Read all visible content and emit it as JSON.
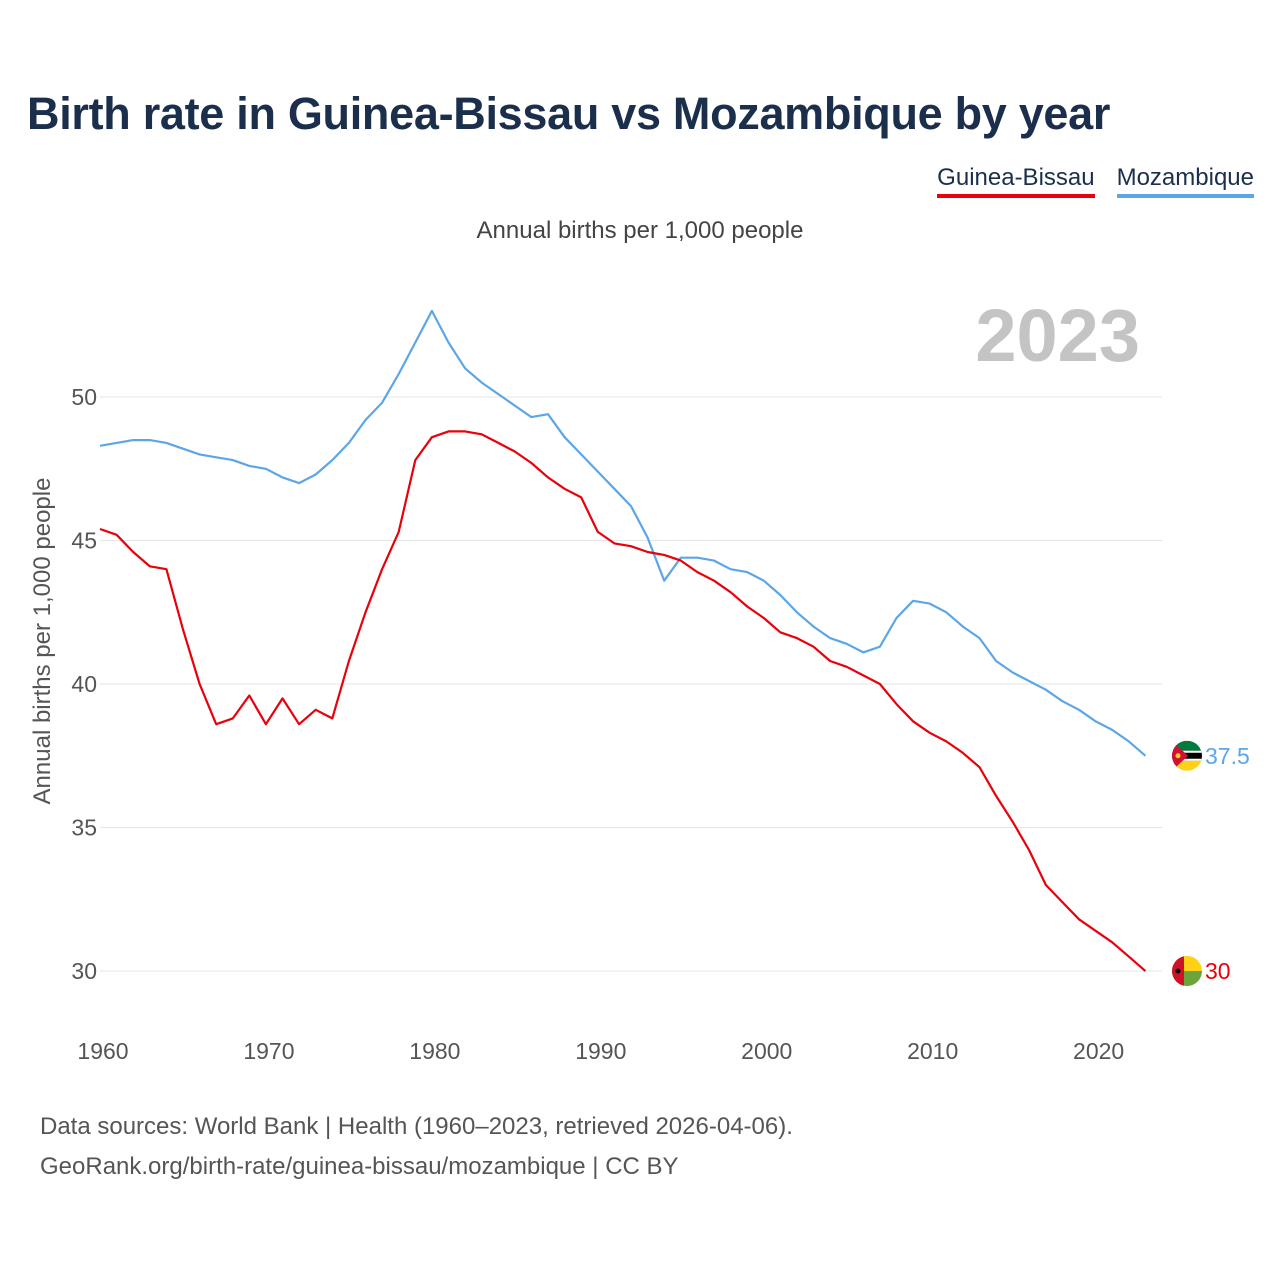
{
  "title": "Birth rate in Guinea-Bissau vs Mozambique by year",
  "legend": [
    {
      "name": "Guinea-Bissau",
      "color": "#e8000b"
    },
    {
      "name": "Mozambique",
      "color": "#5ca6e6"
    }
  ],
  "subtitle": "Annual births per 1,000 people",
  "source": {
    "line1": "Data sources: World Bank | Health (1960–2023, retrieved 2026-04-06).",
    "line2": "GeoRank.org/birth-rate/guinea-bissau/mozambique | CC BY"
  },
  "chart_data": {
    "type": "line",
    "title": "Birth rate in Guinea-Bissau vs Mozambique by year",
    "ylabel": "Annual births per 1,000 people",
    "xlabel": "",
    "year_label": "2023",
    "x_start": 1960,
    "xlim": [
      1960,
      2024
    ],
    "ylim": [
      28.5,
      53.5
    ],
    "yticks": [
      30,
      35,
      40,
      45,
      50
    ],
    "xticks": [
      1960,
      1970,
      1980,
      1990,
      2000,
      2010,
      2020
    ],
    "grid": true,
    "series": [
      {
        "name": "Guinea-Bissau",
        "color": "#e8000b",
        "end_label": "30",
        "flag": "guinea-bissau-flag",
        "values": [
          45.4,
          45.2,
          44.6,
          44.1,
          44.0,
          41.9,
          40.0,
          38.6,
          38.8,
          39.6,
          38.6,
          39.5,
          38.6,
          39.1,
          38.8,
          40.8,
          42.5,
          44.0,
          45.3,
          47.8,
          48.6,
          48.8,
          48.8,
          48.7,
          48.4,
          48.1,
          47.7,
          47.2,
          46.8,
          46.5,
          45.3,
          44.9,
          44.8,
          44.6,
          44.5,
          44.3,
          43.9,
          43.6,
          43.2,
          42.7,
          42.3,
          41.8,
          41.6,
          41.3,
          40.8,
          40.6,
          40.3,
          40.0,
          39.3,
          38.7,
          38.3,
          38.0,
          37.6,
          37.1,
          36.1,
          35.2,
          34.2,
          33.0,
          32.4,
          31.8,
          31.4,
          31.0,
          30.5,
          30.0
        ]
      },
      {
        "name": "Mozambique",
        "color": "#5ca6e6",
        "end_label": "37.5",
        "flag": "mozambique-flag",
        "values": [
          48.3,
          48.4,
          48.5,
          48.5,
          48.4,
          48.2,
          48.0,
          47.9,
          47.8,
          47.6,
          47.5,
          47.2,
          47.0,
          47.3,
          47.8,
          48.4,
          49.2,
          49.8,
          50.8,
          51.9,
          53.0,
          51.9,
          51.0,
          50.5,
          50.1,
          49.7,
          49.3,
          49.4,
          48.6,
          48.0,
          47.4,
          46.8,
          46.2,
          45.1,
          43.6,
          44.4,
          44.4,
          44.3,
          44.0,
          43.9,
          43.6,
          43.1,
          42.5,
          42.0,
          41.6,
          41.4,
          41.1,
          41.3,
          42.3,
          42.9,
          42.8,
          42.5,
          42.0,
          41.6,
          40.8,
          40.4,
          40.1,
          39.8,
          39.4,
          39.1,
          38.7,
          38.4,
          38.0,
          37.5
        ]
      }
    ]
  }
}
